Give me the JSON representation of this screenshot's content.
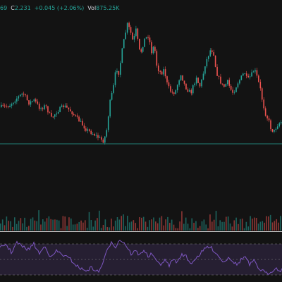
{
  "legend": {
    "open_tail": "69",
    "close_key": "C",
    "close_value": "2.231",
    "change": "+0.045 (+2.06%)",
    "vol_key": "Vol",
    "vol_value": "875.25K"
  },
  "colors": {
    "background": "#131313",
    "up": "#26a69a",
    "down": "#ef5350",
    "rsi_line": "#7e57c2",
    "rsi_band": "rgba(126,87,194,0.18)",
    "price_line": "#26a69a",
    "separator": "#c8c8c8"
  },
  "chart_data": [
    {
      "type": "candlestick",
      "series_points": [
        [
          0,
          152
        ],
        [
          12,
          150
        ],
        [
          22,
          140
        ],
        [
          32,
          132
        ],
        [
          40,
          146
        ],
        [
          48,
          142
        ],
        [
          56,
          154
        ],
        [
          64,
          150
        ],
        [
          72,
          168
        ],
        [
          80,
          158
        ],
        [
          90,
          150
        ],
        [
          100,
          158
        ],
        [
          112,
          172
        ],
        [
          122,
          184
        ],
        [
          132,
          190
        ],
        [
          140,
          196
        ],
        [
          146,
          200
        ],
        [
          150,
          188
        ],
        [
          155,
          146
        ],
        [
          160,
          124
        ],
        [
          164,
          96
        ],
        [
          168,
          104
        ],
        [
          172,
          74
        ],
        [
          176,
          52
        ],
        [
          180,
          34
        ],
        [
          184,
          44
        ],
        [
          188,
          60
        ],
        [
          192,
          42
        ],
        [
          198,
          78
        ],
        [
          204,
          56
        ],
        [
          210,
          50
        ],
        [
          214,
          74
        ],
        [
          218,
          64
        ],
        [
          222,
          96
        ],
        [
          228,
          104
        ],
        [
          232,
          98
        ],
        [
          236,
          118
        ],
        [
          240,
          128
        ],
        [
          244,
          132
        ],
        [
          248,
          130
        ],
        [
          252,
          116
        ],
        [
          256,
          104
        ],
        [
          260,
          118
        ],
        [
          264,
          126
        ],
        [
          270,
          132
        ],
        [
          274,
          120
        ],
        [
          278,
          108
        ],
        [
          282,
          124
        ],
        [
          286,
          112
        ],
        [
          290,
          92
        ],
        [
          294,
          80
        ],
        [
          298,
          70
        ],
        [
          302,
          74
        ],
        [
          306,
          102
        ],
        [
          310,
          112
        ],
        [
          316,
          124
        ],
        [
          322,
          116
        ],
        [
          326,
          126
        ],
        [
          330,
          132
        ],
        [
          336,
          118
        ],
        [
          340,
          112
        ],
        [
          346,
          102
        ],
        [
          350,
          114
        ],
        [
          356,
          106
        ],
        [
          360,
          98
        ],
        [
          364,
          110
        ],
        [
          368,
          124
        ],
        [
          372,
          146
        ],
        [
          376,
          162
        ],
        [
          380,
          170
        ],
        [
          384,
          184
        ],
        [
          388,
          186
        ],
        [
          392,
          178
        ],
        [
          396,
          174
        ],
        [
          400,
          172
        ]
      ],
      "price_line_level": 204,
      "volume_samples": 140,
      "rsi_points": [
        [
          0,
          352
        ],
        [
          8,
          346
        ],
        [
          16,
          358
        ],
        [
          24,
          344
        ],
        [
          32,
          350
        ],
        [
          40,
          354
        ],
        [
          48,
          346
        ],
        [
          56,
          360
        ],
        [
          64,
          348
        ],
        [
          72,
          366
        ],
        [
          80,
          356
        ],
        [
          90,
          362
        ],
        [
          100,
          368
        ],
        [
          110,
          378
        ],
        [
          120,
          384
        ],
        [
          130,
          380
        ],
        [
          140,
          386
        ],
        [
          146,
          372
        ],
        [
          152,
          356
        ],
        [
          158,
          342
        ],
        [
          164,
          350
        ],
        [
          170,
          340
        ],
        [
          176,
          344
        ],
        [
          180,
          350
        ],
        [
          186,
          360
        ],
        [
          192,
          356
        ],
        [
          198,
          362
        ],
        [
          204,
          354
        ],
        [
          210,
          364
        ],
        [
          216,
          360
        ],
        [
          222,
          372
        ],
        [
          228,
          374
        ],
        [
          234,
          370
        ],
        [
          240,
          376
        ],
        [
          246,
          368
        ],
        [
          252,
          372
        ],
        [
          258,
          360
        ],
        [
          264,
          364
        ],
        [
          270,
          374
        ],
        [
          276,
          368
        ],
        [
          282,
          362
        ],
        [
          288,
          356
        ],
        [
          294,
          350
        ],
        [
          300,
          352
        ],
        [
          306,
          358
        ],
        [
          312,
          366
        ],
        [
          318,
          372
        ],
        [
          324,
          364
        ],
        [
          330,
          370
        ],
        [
          336,
          376
        ],
        [
          342,
          368
        ],
        [
          348,
          364
        ],
        [
          354,
          376
        ],
        [
          360,
          370
        ],
        [
          366,
          380
        ],
        [
          372,
          384
        ],
        [
          378,
          388
        ],
        [
          384,
          386
        ],
        [
          390,
          380
        ],
        [
          396,
          384
        ],
        [
          400,
          382
        ]
      ]
    }
  ]
}
